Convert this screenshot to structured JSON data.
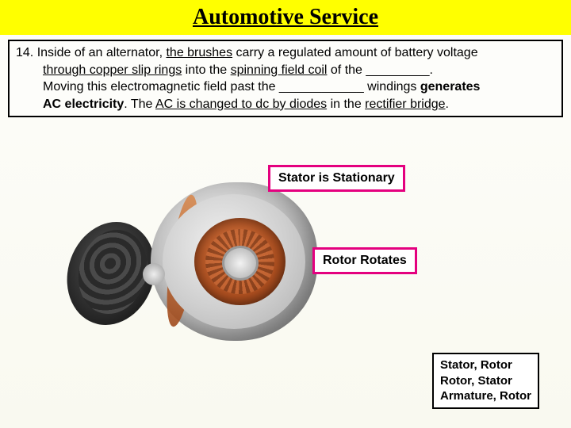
{
  "title": "Automotive Service",
  "question": {
    "number": "14",
    "line1_a": ". Inside of an alternator, ",
    "line1_b": "the brushes",
    "line1_c": " carry a regulated amount of battery voltage",
    "line2_a": "through copper slip rings",
    "line2_b": " into the ",
    "line2_c": "spinning field coil",
    "line2_d": " of the _________.",
    "line3_a": "Moving this electromagnetic field past the ____________ windings ",
    "line3_b": "generates",
    "line4_a": "AC electricity",
    "line4_b": ".   The ",
    "line4_c": "AC is changed to dc by diodes",
    "line4_d": " in the ",
    "line4_e": "rectifier bridge",
    "line4_f": "."
  },
  "callouts": {
    "stator": "Stator is Stationary",
    "rotor": "Rotor Rotates"
  },
  "answers": {
    "a": "Stator, Rotor",
    "b": "Rotor, Stator",
    "c": "Armature, Rotor"
  },
  "colors": {
    "highlight_border": "#e4007f",
    "title_bg": "#ffff00"
  }
}
